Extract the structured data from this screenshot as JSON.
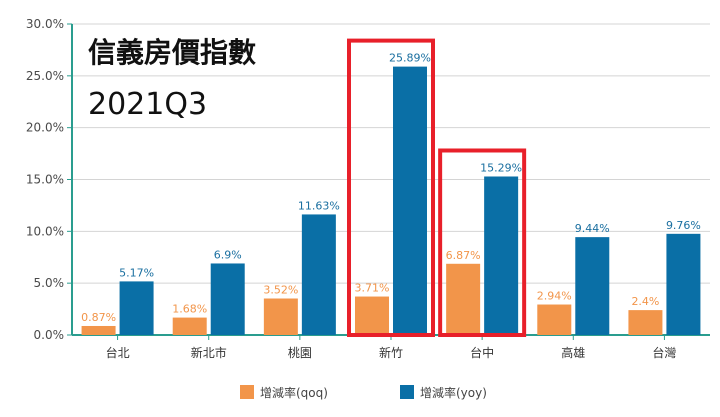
{
  "chart_data": {
    "type": "bar",
    "title": "信義房價指數",
    "subtitle": "2021Q3",
    "categories": [
      "台北",
      "新北市",
      "桃園",
      "新竹",
      "台中",
      "高雄",
      "台灣"
    ],
    "series": [
      {
        "name": "增減率(qoq)",
        "color": "#f2954a",
        "values": [
          0.87,
          1.68,
          3.52,
          3.71,
          6.87,
          2.94,
          2.4
        ],
        "labels": [
          "0.87%",
          "1.68%",
          "3.52%",
          "3.71%",
          "6.87%",
          "2.94%",
          "2.4%"
        ]
      },
      {
        "name": "增減率(yoy)",
        "color": "#0a6fa6",
        "values": [
          5.17,
          6.9,
          11.63,
          25.89,
          15.29,
          9.44,
          9.76
        ],
        "labels": [
          "5.17%",
          "6.9%",
          "11.63%",
          "25.89%",
          "15.29%",
          "9.44%",
          "9.76%"
        ]
      }
    ],
    "ylim": [
      0,
      30
    ],
    "yticks": [
      "0.0%",
      "5.0%",
      "10.0%",
      "15.0%",
      "20.0%",
      "25.0%",
      "30.0%"
    ],
    "grid": true,
    "legend_position": "bottom",
    "highlighted_categories": [
      "新竹",
      "台中"
    ],
    "highlight_color": "#e8202a",
    "axis_color": "#2a9d8f"
  }
}
